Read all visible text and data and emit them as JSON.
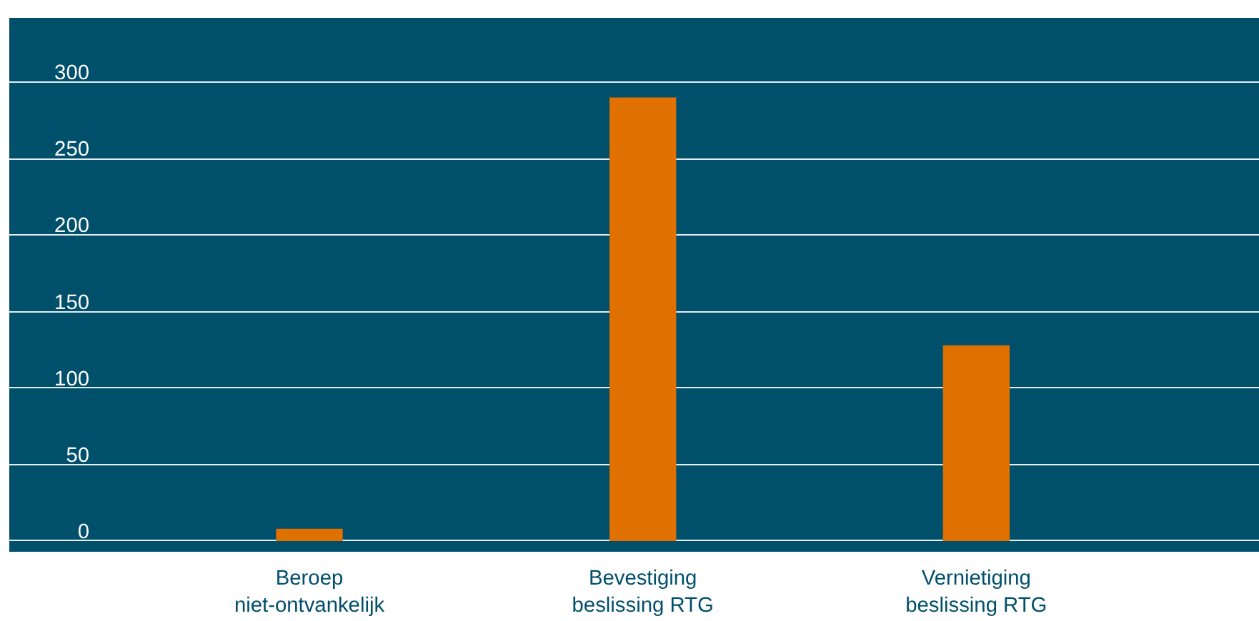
{
  "chart_data": {
    "type": "bar",
    "categories": [
      "Beroep\nniet-ontvankelijk",
      "Bevestiging\nbeslissing RTG",
      "Vernietiging\nbeslissing RTG"
    ],
    "values": [
      8,
      290,
      128
    ],
    "color": "#e07000",
    "ylim": [
      -7,
      342
    ],
    "yticks": [
      0,
      50,
      100,
      150,
      200,
      250,
      300
    ],
    "grid": "y"
  }
}
